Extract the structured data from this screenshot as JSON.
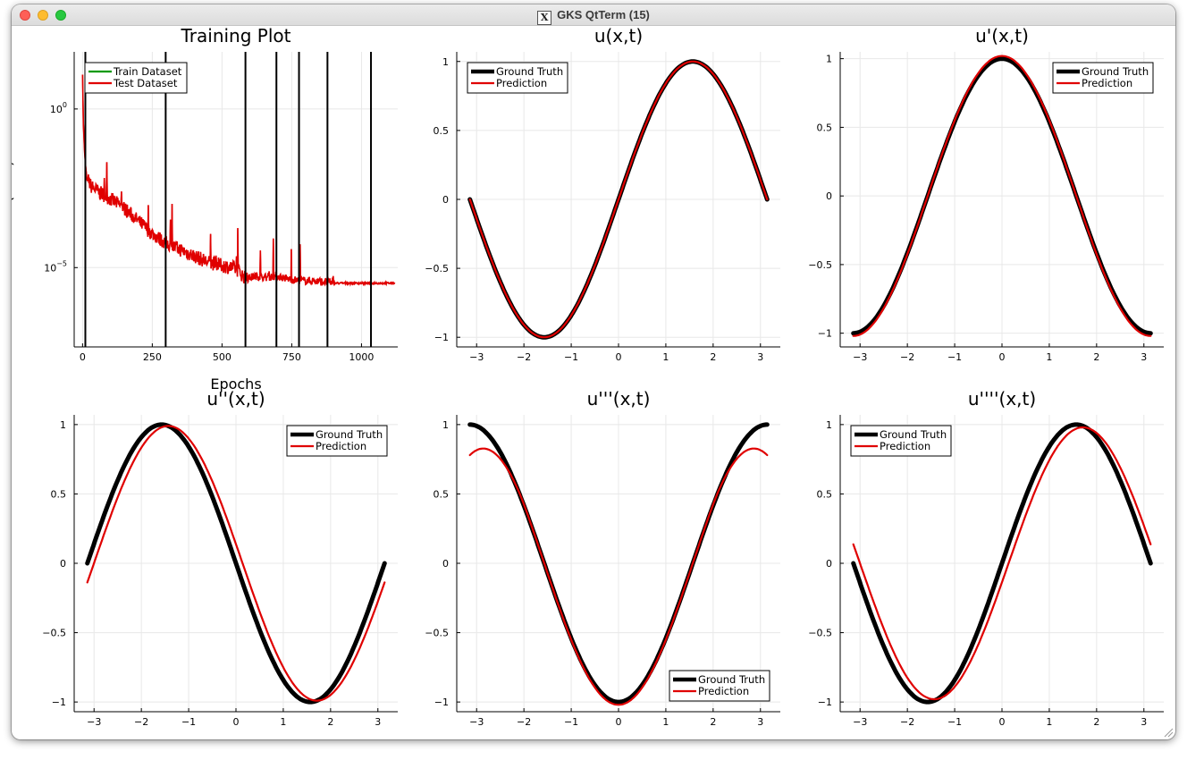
{
  "window": {
    "title": "GKS QtTerm (15)",
    "icon": "x11-icon"
  },
  "colors": {
    "ground_truth": "#000000",
    "prediction": "#e00000",
    "train": "#009a00",
    "test": "#e00000"
  },
  "chart_data": [
    {
      "type": "line",
      "title": "Training Plot",
      "xlabel": "Epochs",
      "ylabel": "Loss (MSE)",
      "yscale": "log",
      "xlim": [
        -30,
        1130
      ],
      "ylim_log10": [
        -7.5,
        1.8
      ],
      "xticks": [
        0,
        250,
        500,
        750,
        1000
      ],
      "yticks": [
        {
          "base": "10",
          "exp": "0",
          "v": 0
        },
        {
          "base": "10",
          "exp": "−5",
          "v": -5
        }
      ],
      "grid": true,
      "legend": "top-left",
      "series": [
        {
          "name": "Train Dataset",
          "color": "#009a00"
        },
        {
          "name": "Test Dataset",
          "color": "#e00000"
        }
      ],
      "vlines": [
        10,
        298,
        584,
        695,
        776,
        878,
        1034
      ],
      "loss_curve": [
        [
          0,
          1.1
        ],
        [
          3,
          -0.5
        ],
        [
          8,
          -1.5
        ],
        [
          15,
          -2.2
        ],
        [
          30,
          -2.5
        ],
        [
          60,
          -2.7
        ],
        [
          100,
          -2.9
        ],
        [
          150,
          -3.2
        ],
        [
          200,
          -3.6
        ],
        [
          250,
          -4.0
        ],
        [
          300,
          -4.3
        ],
        [
          350,
          -4.5
        ],
        [
          400,
          -4.7
        ],
        [
          450,
          -4.9
        ],
        [
          500,
          -5.0
        ],
        [
          550,
          -5.1
        ],
        [
          584,
          -5.4
        ],
        [
          620,
          -5.3
        ],
        [
          660,
          -5.35
        ],
        [
          695,
          -5.3
        ],
        [
          740,
          -5.4
        ],
        [
          776,
          -5.45
        ],
        [
          820,
          -5.45
        ],
        [
          878,
          -5.5
        ],
        [
          950,
          -5.5
        ],
        [
          1000,
          -5.5
        ],
        [
          1034,
          -5.5
        ],
        [
          1120,
          -5.5
        ]
      ]
    },
    {
      "type": "line",
      "title": "u(x,t)",
      "fn": "sin",
      "xlim": [
        -3.42,
        3.42
      ],
      "ylim": [
        -1.07,
        1.07
      ],
      "xticks": [
        -3,
        -2,
        -1,
        0,
        1,
        2,
        3
      ],
      "yticks": [
        -1.0,
        -0.5,
        0.0,
        0.5,
        1.0
      ],
      "legend": "top-left",
      "series": [
        {
          "name": "Ground Truth",
          "color": "#000000",
          "amp": 1.0,
          "offset": 0.0
        },
        {
          "name": "Prediction",
          "color": "#e00000",
          "amp": 1.0,
          "offset": 0.0
        }
      ]
    },
    {
      "type": "line",
      "title": "u'(x,t)",
      "fn": "cos",
      "xlim": [
        -3.42,
        3.42
      ],
      "ylim": [
        -1.1,
        1.05
      ],
      "xticks": [
        -3,
        -2,
        -1,
        0,
        1,
        2,
        3
      ],
      "yticks": [
        -1.0,
        -0.5,
        0.0,
        0.5,
        1.0
      ],
      "legend": "top-right",
      "series": [
        {
          "name": "Ground Truth",
          "color": "#000000",
          "amp": 1.0,
          "offset": 0.0
        },
        {
          "name": "Prediction",
          "color": "#e00000",
          "amp": 1.02,
          "offset": 0.0
        }
      ]
    },
    {
      "type": "line",
      "title": "u''(x,t)",
      "fn": "-sin",
      "xlim": [
        -3.42,
        3.42
      ],
      "ylim": [
        -1.07,
        1.07
      ],
      "xticks": [
        -3,
        -2,
        -1,
        0,
        1,
        2,
        3
      ],
      "yticks": [
        -1.0,
        -0.5,
        0.0,
        0.5,
        1.0
      ],
      "legend": "top-right",
      "series": [
        {
          "name": "Ground Truth",
          "color": "#000000",
          "amp": 1.0,
          "offset": 0.0
        },
        {
          "name": "Prediction",
          "color": "#e00000",
          "amp": 0.99,
          "offset": 0.14
        }
      ]
    },
    {
      "type": "line",
      "title": "u'''(x,t)",
      "fn": "-cos",
      "xlim": [
        -3.42,
        3.42
      ],
      "ylim": [
        -1.07,
        1.07
      ],
      "xticks": [
        -3,
        -2,
        -1,
        0,
        1,
        2,
        3
      ],
      "yticks": [
        -1.0,
        -0.5,
        0.0,
        0.5,
        1.0
      ],
      "legend": "bottom-right",
      "series": [
        {
          "name": "Ground Truth",
          "color": "#000000",
          "amp": 1.0,
          "offset": 0.0
        },
        {
          "name": "Prediction",
          "color": "#e00000",
          "amp": 1.02,
          "offset": 0.0,
          "flatten": 0.24
        }
      ]
    },
    {
      "type": "line",
      "title": "u''''(x,t)",
      "fn": "sin",
      "xlim": [
        -3.42,
        3.42
      ],
      "ylim": [
        -1.07,
        1.07
      ],
      "xticks": [
        -3,
        -2,
        -1,
        0,
        1,
        2,
        3
      ],
      "yticks": [
        -1.0,
        -0.5,
        0.0,
        0.5,
        1.0
      ],
      "legend": "top-left",
      "series": [
        {
          "name": "Ground Truth",
          "color": "#000000",
          "amp": 1.0,
          "offset": 0.0
        },
        {
          "name": "Prediction",
          "color": "#e00000",
          "amp": 0.98,
          "offset": 0.14
        }
      ]
    }
  ]
}
